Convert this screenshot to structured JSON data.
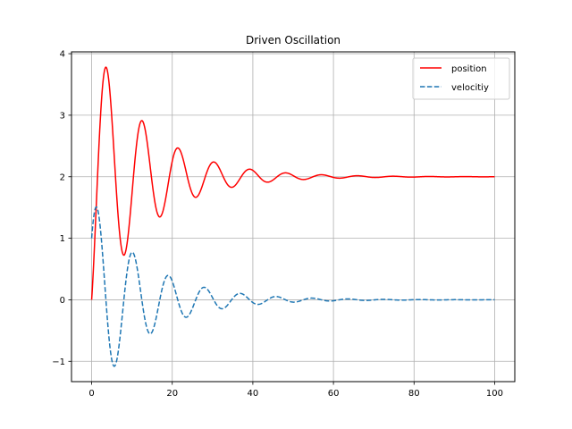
{
  "chart_data": {
    "type": "line",
    "title": "Driven Oscillation",
    "xlabel": "",
    "ylabel": "",
    "xlim": [
      -5,
      105
    ],
    "ylim": [
      -1.33,
      4.03
    ],
    "xticks": [
      0,
      20,
      40,
      60,
      80,
      100
    ],
    "yticks": [
      -1,
      0,
      1,
      2,
      3,
      4
    ],
    "xtick_labels": [
      "0",
      "20",
      "40",
      "60",
      "80",
      "100"
    ],
    "ytick_labels": [
      "−1",
      "0",
      "1",
      "2",
      "3",
      "4"
    ],
    "grid": true,
    "legend_position": "top-right",
    "model": {
      "equilibrium": 2.0,
      "initial_position": 0.0,
      "initial_velocity": 1.0,
      "damping_rate": 0.075,
      "angular_frequency": 0.705,
      "t_start": 0,
      "t_end": 100
    },
    "series": [
      {
        "name": "position",
        "color": "#ff0000",
        "style": "solid",
        "key_points": [
          {
            "x": 0,
            "y": 0.0
          },
          {
            "x": 3.5,
            "y": 3.78
          },
          {
            "x": 8.0,
            "y": 0.72
          },
          {
            "x": 12.5,
            "y": 2.92
          },
          {
            "x": 17.0,
            "y": 1.35
          },
          {
            "x": 21.5,
            "y": 2.47
          },
          {
            "x": 26.0,
            "y": 1.67
          },
          {
            "x": 30.5,
            "y": 2.24
          },
          {
            "x": 35.0,
            "y": 1.83
          },
          {
            "x": 39.5,
            "y": 2.12
          },
          {
            "x": 44.0,
            "y": 1.92
          },
          {
            "x": 48.5,
            "y": 2.06
          },
          {
            "x": 100,
            "y": 2.0
          }
        ]
      },
      {
        "name": "velocitiy",
        "color": "#1f77b4",
        "style": "dashed",
        "key_points": [
          {
            "x": 0,
            "y": 1.0
          },
          {
            "x": 1.2,
            "y": 1.49
          },
          {
            "x": 5.5,
            "y": -1.08
          },
          {
            "x": 10.0,
            "y": 0.77
          },
          {
            "x": 14.5,
            "y": -0.55
          },
          {
            "x": 19.0,
            "y": 0.4
          },
          {
            "x": 23.5,
            "y": -0.28
          },
          {
            "x": 28.0,
            "y": 0.2
          },
          {
            "x": 32.5,
            "y": -0.14
          },
          {
            "x": 37.0,
            "y": 0.1
          },
          {
            "x": 100,
            "y": 0.0
          }
        ]
      }
    ]
  }
}
